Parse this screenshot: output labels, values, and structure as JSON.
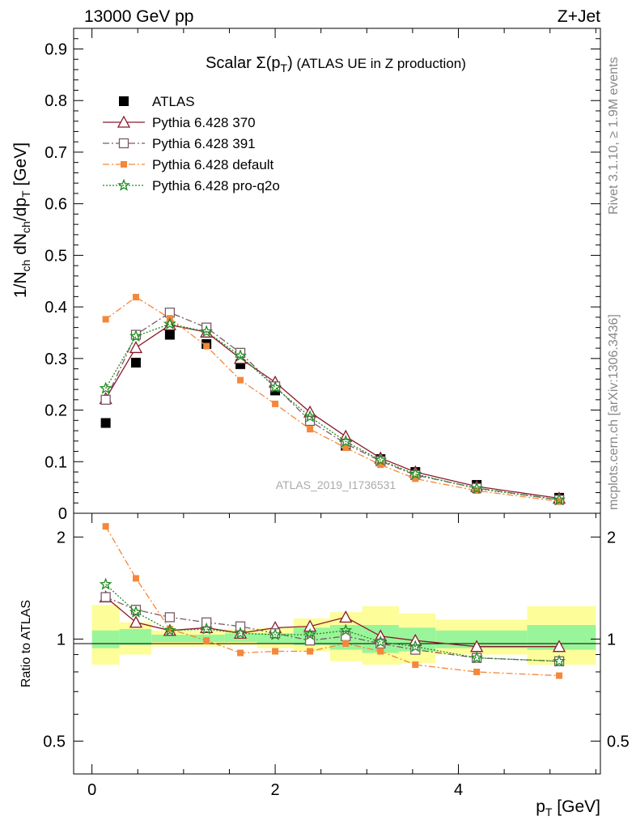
{
  "header": {
    "left": "13000 GeV pp",
    "right": "Z+Jet"
  },
  "side_text": {
    "rivet": "Rivet 3.1.10, ≥ 1.9M events",
    "mcplots": "mcplots.cern.ch [arXiv:1306.3436]"
  },
  "colors": {
    "atlas": "#000000",
    "p370": "#8b1a2b",
    "p391": "#7a5a68",
    "pdefault": "#f5873a",
    "pq2o": "#1e8c1e",
    "band_inner": "#99f599",
    "band_outer": "#fdfd99"
  },
  "chart_data": [
    {
      "type": "scatter",
      "title": {
        "pre": "Scalar ",
        "sigma": "Σ(p",
        "sub": "T",
        "post": ")",
        "rest": " (ATLAS UE in Z production)"
      },
      "ylabel": {
        "a": "1/N",
        "a_sub": "ch",
        "b": " dN",
        "b_sub": "ch",
        "c": "/dp",
        "c_sub": "T",
        "d": " [GeV]"
      },
      "watermark": "ATLAS_2019_I1736531",
      "xlim": [
        -0.2,
        5.55
      ],
      "ylim": [
        0,
        0.94
      ],
      "y_ticks": [
        "0",
        "0.1",
        "0.2",
        "0.3",
        "0.4",
        "0.5",
        "0.6",
        "0.7",
        "0.8",
        "0.9"
      ],
      "y_tick_values": [
        0,
        0.1,
        0.2,
        0.3,
        0.4,
        0.5,
        0.6,
        0.7,
        0.8,
        0.9
      ],
      "x_bins": [
        [
          0.0,
          0.3
        ],
        [
          0.3,
          0.65
        ],
        [
          0.65,
          1.05
        ],
        [
          1.05,
          1.45
        ],
        [
          1.45,
          1.8
        ],
        [
          1.8,
          2.2
        ],
        [
          2.2,
          2.6
        ],
        [
          2.6,
          2.95
        ],
        [
          2.95,
          3.35
        ],
        [
          3.35,
          3.75
        ],
        [
          3.75,
          4.75
        ],
        [
          4.75,
          5.5
        ]
      ],
      "x": [
        0.15,
        0.48,
        0.85,
        1.25,
        1.62,
        2.0,
        2.38,
        2.77,
        3.15,
        3.53,
        4.2,
        5.1
      ],
      "legend": [
        {
          "name": "ATLAS"
        },
        {
          "name": "Pythia 6.428 370"
        },
        {
          "name": "Pythia 6.428 391"
        },
        {
          "name": "Pythia 6.428 default"
        },
        {
          "name": "Pythia 6.428 pro-q2o"
        }
      ],
      "series": [
        {
          "name": "ATLAS",
          "values": [
            0.175,
            0.292,
            0.346,
            0.328,
            0.289,
            0.238,
            0.181,
            0.131,
            0.105,
            0.08,
            0.055,
            0.03
          ]
        },
        {
          "name": "Pythia 6.428 370",
          "values": [
            0.222,
            0.321,
            0.365,
            0.351,
            0.3,
            0.254,
            0.196,
            0.149,
            0.107,
            0.08,
            0.052,
            0.029
          ]
        },
        {
          "name": "Pythia 6.428 391",
          "values": [
            0.22,
            0.346,
            0.389,
            0.36,
            0.311,
            0.246,
            0.179,
            0.135,
            0.101,
            0.074,
            0.049,
            0.026
          ]
        },
        {
          "name": "Pythia 6.428 default",
          "values": [
            0.376,
            0.419,
            0.378,
            0.324,
            0.258,
            0.212,
            0.163,
            0.127,
            0.094,
            0.067,
            0.044,
            0.023
          ]
        },
        {
          "name": "Pythia 6.428 pro-q2o",
          "values": [
            0.242,
            0.343,
            0.367,
            0.352,
            0.305,
            0.244,
            0.187,
            0.139,
            0.103,
            0.076,
            0.048,
            0.026
          ]
        }
      ]
    },
    {
      "type": "scatter",
      "ylabel": "Ratio to ATLAS",
      "xlabel": {
        "p": "p",
        "sub": "T",
        "unit": " [GeV]"
      },
      "scale": "log",
      "ylim": [
        0.4,
        2.35
      ],
      "y_ticks": [
        "0.5",
        "1",
        "2"
      ],
      "y_tick_values": [
        0.5,
        1,
        2
      ],
      "x_ticks": [
        "0",
        "2",
        "4"
      ],
      "x_tick_values": [
        0,
        2,
        4
      ],
      "band_inner": [
        [
          0.94,
          1.06
        ],
        [
          0.96,
          1.07
        ],
        [
          0.98,
          1.03
        ],
        [
          0.98,
          1.03
        ],
        [
          0.98,
          1.04
        ],
        [
          0.97,
          1.04
        ],
        [
          0.96,
          1.08
        ],
        [
          0.93,
          1.1
        ],
        [
          0.91,
          1.1
        ],
        [
          0.92,
          1.08
        ],
        [
          0.94,
          1.06
        ],
        [
          0.93,
          1.1
        ]
      ],
      "band_outer": [
        [
          0.84,
          1.26
        ],
        [
          0.9,
          1.12
        ],
        [
          0.95,
          1.06
        ],
        [
          0.95,
          1.06
        ],
        [
          0.96,
          1.07
        ],
        [
          0.94,
          1.08
        ],
        [
          0.92,
          1.15
        ],
        [
          0.86,
          1.2
        ],
        [
          0.84,
          1.25
        ],
        [
          0.85,
          1.19
        ],
        [
          0.9,
          1.14
        ],
        [
          0.84,
          1.25
        ]
      ],
      "series": [
        {
          "name": "Pythia 6.428 370",
          "values": [
            1.33,
            1.12,
            1.06,
            1.08,
            1.04,
            1.08,
            1.09,
            1.16,
            1.02,
            0.99,
            0.95,
            0.95
          ]
        },
        {
          "name": "Pythia 6.428 391",
          "values": [
            1.33,
            1.22,
            1.16,
            1.12,
            1.09,
            1.04,
            0.99,
            1.02,
            0.97,
            0.93,
            0.88,
            0.86
          ]
        },
        {
          "name": "Pythia 6.428 default",
          "values": [
            2.15,
            1.51,
            1.07,
            0.99,
            0.91,
            0.92,
            0.92,
            0.97,
            0.92,
            0.84,
            0.8,
            0.78
          ]
        },
        {
          "name": "Pythia 6.428 pro-q2o",
          "values": [
            1.45,
            1.2,
            1.06,
            1.07,
            1.04,
            1.03,
            1.03,
            1.06,
            0.98,
            0.95,
            0.88,
            0.86
          ]
        }
      ]
    }
  ]
}
